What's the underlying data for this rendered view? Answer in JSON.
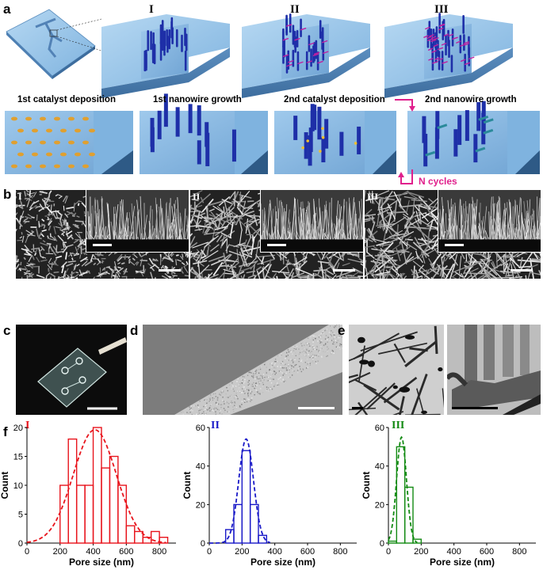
{
  "panels": {
    "a": "a",
    "b": "b",
    "c": "c",
    "d": "d",
    "e": "e",
    "f": "f"
  },
  "panel_a": {
    "romans": [
      "I",
      "II",
      "III"
    ],
    "steps": [
      "1st catalyst deposition",
      "1st nanowire growth",
      "2nd catalyst deposition",
      "2nd nanowire growth"
    ],
    "cycle_label": "N cycles",
    "colors": {
      "substrate": "#8fbfe6",
      "wire": "#1e2fa8",
      "catalyst": "#e0a030",
      "branch": "#2a8a9a",
      "arrow": "#e0208c"
    }
  },
  "panel_b": {
    "romans": [
      "I",
      "II",
      "III"
    ]
  },
  "chart_data": [
    {
      "type": "bar",
      "roman": "I",
      "color": "#e8141c",
      "xlabel": "Pore size (nm)",
      "ylabel": "Count",
      "xlim": [
        0,
        900
      ],
      "ylim": [
        0,
        20
      ],
      "xticks": [
        0,
        200,
        400,
        600,
        800
      ],
      "yticks": [
        0,
        5,
        10,
        15,
        20
      ],
      "bin_width": 50,
      "bins": [
        {
          "x": 200,
          "y": 10
        },
        {
          "x": 250,
          "y": 18
        },
        {
          "x": 300,
          "y": 10
        },
        {
          "x": 350,
          "y": 10
        },
        {
          "x": 400,
          "y": 20
        },
        {
          "x": 450,
          "y": 13
        },
        {
          "x": 500,
          "y": 15
        },
        {
          "x": 550,
          "y": 10
        },
        {
          "x": 600,
          "y": 3
        },
        {
          "x": 650,
          "y": 2
        },
        {
          "x": 700,
          "y": 1
        },
        {
          "x": 750,
          "y": 2
        },
        {
          "x": 800,
          "y": 1
        }
      ],
      "fit": {
        "mean": 410,
        "sigma": 130,
        "amplitude": 19.6
      }
    },
    {
      "type": "bar",
      "roman": "II",
      "color": "#1a1ac8",
      "xlabel": "Pore size (nm)",
      "ylabel": "Count",
      "xlim": [
        0,
        900
      ],
      "ylim": [
        0,
        60
      ],
      "xticks": [
        0,
        200,
        400,
        600,
        800
      ],
      "yticks": [
        0,
        20,
        40,
        60
      ],
      "bin_width": 50,
      "bins": [
        {
          "x": 100,
          "y": 7
        },
        {
          "x": 150,
          "y": 20
        },
        {
          "x": 200,
          "y": 48
        },
        {
          "x": 250,
          "y": 20
        },
        {
          "x": 300,
          "y": 4
        }
      ],
      "fit": {
        "mean": 225,
        "sigma": 45,
        "amplitude": 54
      }
    },
    {
      "type": "bar",
      "roman": "III",
      "color": "#128a12",
      "xlabel": "Pore size (nm)",
      "ylabel": "Count",
      "xlim": [
        0,
        900
      ],
      "ylim": [
        0,
        60
      ],
      "xticks": [
        0,
        200,
        400,
        600,
        800
      ],
      "yticks": [
        0,
        20,
        40,
        60
      ],
      "bin_width": 50,
      "bins": [
        {
          "x": 0,
          "y": 1
        },
        {
          "x": 50,
          "y": 50
        },
        {
          "x": 100,
          "y": 29
        },
        {
          "x": 150,
          "y": 2
        }
      ],
      "fit": {
        "mean": 80,
        "sigma": 30,
        "amplitude": 55
      }
    }
  ]
}
